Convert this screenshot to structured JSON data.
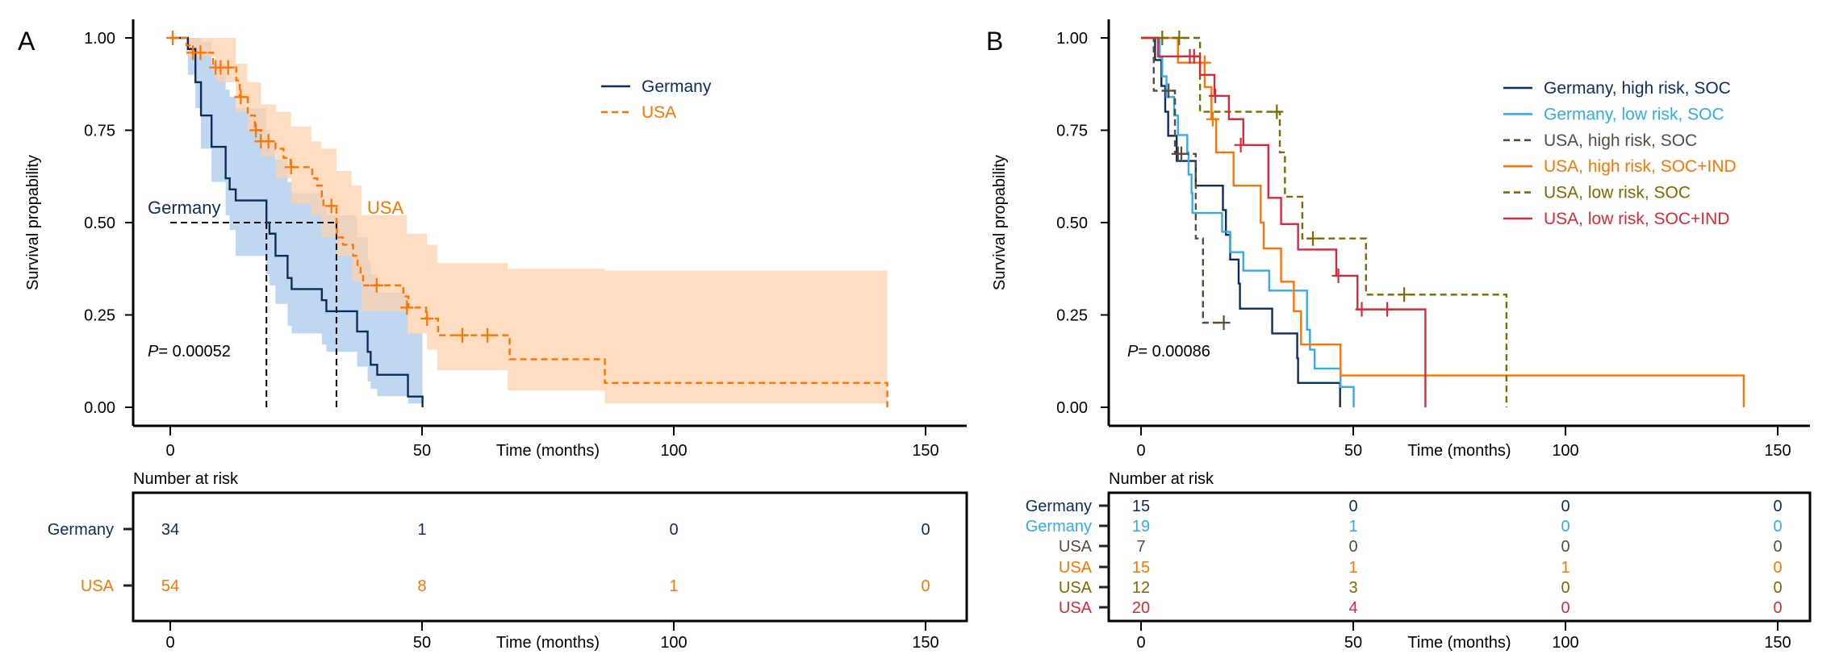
{
  "chart_data": [
    {
      "type": "line",
      "subtype": "kaplan-meier",
      "panel_label": "A",
      "ylabel": "Survival propability",
      "xlabel": "Time (months)",
      "xlim": [
        0,
        150
      ],
      "ylim": [
        0,
        1
      ],
      "xticks": [
        "0",
        "50",
        "100",
        "150"
      ],
      "xtick_values": [
        0,
        50,
        100,
        150
      ],
      "yticks": [
        "0.00",
        "0.25",
        "0.50",
        "0.75",
        "1.00"
      ],
      "ytick_values": [
        0,
        0.25,
        0.5,
        0.75,
        1
      ],
      "legend_placement": "top-right",
      "p_value_prefix": "P",
      "p_value": "= 0.00052",
      "median_labels": [
        "Germany",
        "USA"
      ],
      "medians": [
        19.1,
        33
      ],
      "series": [
        {
          "name": "Germany",
          "color": "#0b2d5b",
          "dash": false,
          "ci_color": "#a9c9ec",
          "times": [
            3.5,
            5,
            6.1,
            8.2,
            11,
            11.8,
            13,
            19.1,
            19.7,
            20.9,
            23.3,
            24.1,
            30.1,
            31,
            37.1,
            39.2,
            39.8,
            41.1,
            47.2,
            50.1
          ],
          "surv": [
            0.97,
            0.88,
            0.79,
            0.705,
            0.62,
            0.59,
            0.56,
            0.5,
            0.47,
            0.41,
            0.35,
            0.32,
            0.29,
            0.26,
            0.205,
            0.15,
            0.115,
            0.088,
            0.029,
            0
          ],
          "end": 50.1,
          "censor": [],
          "ci": {
            "times": [
              3.5,
              5,
              6.1,
              8.2,
              11,
              11.8,
              13,
              19.1,
              19.7,
              20.9,
              23.3,
              24.1,
              30.1,
              31,
              37.1,
              39.2,
              39.8,
              41.1,
              47.2
            ],
            "upper": [
              1,
              1,
              0.99,
              0.93,
              0.86,
              0.84,
              0.81,
              0.75,
              0.72,
              0.67,
              0.61,
              0.58,
              0.55,
              0.52,
              0.46,
              0.4,
              0.36,
              0.31,
              0.2
            ],
            "lower": [
              0.9,
              0.81,
              0.7,
              0.61,
              0.52,
              0.48,
              0.41,
              0.36,
              0.33,
              0.28,
              0.22,
              0.2,
              0.17,
              0.15,
              0.11,
              0.07,
              0.05,
              0.03,
              0.01
            ],
            "end": 50.1
          }
        },
        {
          "name": "USA",
          "color": "#ff7300",
          "dash": true,
          "ci_color": "#fdd2ae",
          "times": [
            3.2,
            4.5,
            8.5,
            13.1,
            13.8,
            15.4,
            16.8,
            18,
            20.9,
            22.5,
            23.9,
            28.2,
            29.2,
            30.1,
            30.4,
            33,
            33.1,
            34.3,
            36.3,
            37.2,
            37.8,
            38.3,
            46.3,
            47.3,
            50.8,
            53.2,
            67.4,
            86.3,
            142.4
          ],
          "surv": [
            0.98,
            0.96,
            0.92,
            0.885,
            0.84,
            0.79,
            0.75,
            0.72,
            0.7,
            0.675,
            0.65,
            0.62,
            0.6,
            0.57,
            0.545,
            0.5,
            0.46,
            0.44,
            0.41,
            0.38,
            0.36,
            0.33,
            0.3,
            0.27,
            0.24,
            0.195,
            0.13,
            0.066,
            0
          ],
          "end": 142.4,
          "censor": [
            [
              0.5,
              1
            ],
            [
              4.5,
              0.96
            ],
            [
              6,
              0.96
            ],
            [
              9,
              0.92
            ],
            [
              10,
              0.92
            ],
            [
              11.5,
              0.92
            ],
            [
              14,
              0.84
            ],
            [
              17,
              0.75
            ],
            [
              18,
              0.72
            ],
            [
              19.5,
              0.72
            ],
            [
              24,
              0.65
            ],
            [
              32,
              0.545
            ],
            [
              41,
              0.33
            ],
            [
              47,
              0.27
            ],
            [
              51,
              0.24
            ],
            [
              58,
              0.195
            ],
            [
              63,
              0.195
            ]
          ],
          "ci": {
            "times": [
              3.2,
              9,
              13,
              15.3,
              18,
              21,
              24,
              28,
              30,
              33,
              36,
              38,
              47,
              51,
              53,
              67,
              86.3
            ],
            "upper": [
              1,
              1,
              0.93,
              0.88,
              0.82,
              0.8,
              0.76,
              0.72,
              0.7,
              0.64,
              0.6,
              0.52,
              0.47,
              0.44,
              0.39,
              0.375,
              0.37
            ],
            "lower": [
              0.95,
              0.88,
              0.8,
              0.75,
              0.68,
              0.62,
              0.55,
              0.52,
              0.46,
              0.41,
              0.34,
              0.26,
              0.2,
              0.156,
              0.1,
              0.045,
              0.01
            ],
            "end": 142.4
          }
        }
      ],
      "risk_table": {
        "title": "Number at risk",
        "times": [
          0,
          50,
          100,
          150
        ],
        "rows": [
          {
            "label": "Germany",
            "color": "#0b2d5b",
            "values": [
              "34",
              "1",
              "0",
              "0"
            ]
          },
          {
            "label": "USA",
            "color": "#ff7300",
            "values": [
              "54",
              "8",
              "1",
              "0"
            ]
          }
        ]
      }
    },
    {
      "type": "line",
      "subtype": "kaplan-meier",
      "panel_label": "B",
      "ylabel": "Survival propability",
      "xlabel": "Time (months)",
      "xlim": [
        0,
        150
      ],
      "ylim": [
        0,
        1
      ],
      "xticks": [
        "0",
        "50",
        "100",
        "150"
      ],
      "xtick_values": [
        0,
        50,
        100,
        150
      ],
      "yticks": [
        "0.00",
        "0.25",
        "0.50",
        "0.75",
        "1.00"
      ],
      "ytick_values": [
        0,
        0.25,
        0.5,
        0.75,
        1
      ],
      "legend_placement": "top-right",
      "p_value_prefix": "P",
      "p_value": "= 0.00086",
      "series": [
        {
          "name": "Germany, high risk, SOC",
          "color": "#0b2d5b",
          "dash": false,
          "times": [
            3.3,
            4.8,
            5.7,
            6.4,
            8.4,
            12.9,
            19.3,
            20,
            21,
            23,
            23.3,
            30.9,
            36.8,
            37,
            46.9
          ],
          "surv": [
            0.94,
            0.87,
            0.8,
            0.735,
            0.667,
            0.6,
            0.534,
            0.467,
            0.4,
            0.335,
            0.267,
            0.2,
            0.133,
            0.066,
            0
          ],
          "end": 46.9,
          "censor": []
        },
        {
          "name": "Germany, low risk, SOC",
          "color": "#35aae6",
          "dash": false,
          "times": [
            4.4,
            5,
            6,
            7.8,
            8.7,
            10.9,
            11.2,
            11.9,
            12.1,
            19.1,
            21,
            24.1,
            30.2,
            39.1,
            39.8,
            40.9,
            47,
            50.1
          ],
          "surv": [
            0.947,
            0.896,
            0.84,
            0.79,
            0.737,
            0.69,
            0.63,
            0.58,
            0.526,
            0.475,
            0.42,
            0.37,
            0.316,
            0.21,
            0.156,
            0.105,
            0.055,
            0
          ],
          "end": 50.1,
          "censor": []
        },
        {
          "name": "USA, high risk, SOC",
          "color": "#5a4a3a",
          "dash": true,
          "times": [
            3,
            8,
            12.9,
            14.6
          ],
          "surv": [
            0.857,
            0.686,
            0.457,
            0.229
          ],
          "end": 19.5,
          "censor": [
            [
              6.5,
              0.857
            ],
            [
              8.7,
              0.686
            ],
            [
              9.5,
              0.686
            ],
            [
              19.5,
              0.229
            ]
          ]
        },
        {
          "name": "USA, high risk, SOC+IND",
          "color": "#ff7300",
          "dash": false,
          "times": [
            8.7,
            15,
            16.6,
            17.7,
            21.8,
            28.2,
            28.9,
            33,
            36,
            37.7,
            47,
            142
          ],
          "surv": [
            0.933,
            0.867,
            0.78,
            0.69,
            0.6,
            0.5,
            0.43,
            0.34,
            0.26,
            0.17,
            0.086,
            0
          ],
          "end": 142,
          "censor": [
            [
              15,
              0.933
            ],
            [
              16.9,
              0.78
            ]
          ]
        },
        {
          "name": "USA, low risk, SOC",
          "color": "#7a6a00",
          "dash": true,
          "times": [
            13.9,
            32.7,
            33.9,
            38,
            53,
            86.1
          ],
          "surv": [
            0.8,
            0.69,
            0.57,
            0.457,
            0.305,
            0
          ],
          "end": 86.1,
          "censor": [
            [
              5,
              1
            ],
            [
              9,
              1
            ],
            [
              32,
              0.8
            ],
            [
              40.5,
              0.457
            ],
            [
              62,
              0.305
            ]
          ]
        },
        {
          "name": "USA, low risk, SOC+IND",
          "color": "#d42a3a",
          "dash": false,
          "times": [
            4,
            13.9,
            17.3,
            20.7,
            24.1,
            30,
            33,
            37,
            46,
            51,
            67
          ],
          "surv": [
            0.95,
            0.9,
            0.843,
            0.78,
            0.71,
            0.567,
            0.496,
            0.427,
            0.356,
            0.265,
            0
          ],
          "end": 67,
          "censor": [
            [
              11.5,
              0.95
            ],
            [
              12.5,
              0.95
            ],
            [
              17.5,
              0.843
            ],
            [
              23.5,
              0.71
            ],
            [
              46.5,
              0.356
            ],
            [
              52,
              0.265
            ],
            [
              58,
              0.265
            ]
          ]
        }
      ],
      "risk_table": {
        "title": "Number at risk",
        "times": [
          0,
          50,
          100,
          150
        ],
        "rows": [
          {
            "label": "Germany",
            "color": "#0b2d5b",
            "values": [
              "15",
              "0",
              "0",
              "0"
            ]
          },
          {
            "label": "Germany",
            "color": "#35aae6",
            "values": [
              "19",
              "1",
              "0",
              "0"
            ]
          },
          {
            "label": "USA",
            "color": "#5a4a3a",
            "values": [
              "7",
              "0",
              "0",
              "0"
            ]
          },
          {
            "label": "USA",
            "color": "#ff7300",
            "values": [
              "15",
              "1",
              "1",
              "0"
            ]
          },
          {
            "label": "USA",
            "color": "#7a6a00",
            "values": [
              "12",
              "3",
              "0",
              "0"
            ]
          },
          {
            "label": "USA",
            "color": "#d42a3a",
            "values": [
              "20",
              "4",
              "0",
              "0"
            ]
          }
        ]
      }
    }
  ]
}
